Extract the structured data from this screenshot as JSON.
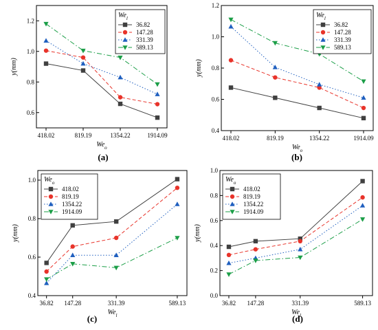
{
  "chart_data": [
    {
      "type": "line",
      "panel_label": "(a)",
      "ylabel": "y(mm)",
      "xlabel": "We_o",
      "categories": [
        "418.02",
        "819.19",
        "1354.22",
        "1914.09"
      ],
      "ylim": [
        0.5,
        1.3
      ],
      "yticks": [
        "0.6",
        "0.8",
        "1.0",
        "1.2"
      ],
      "legend_title": "We_l",
      "legend_position": "top-right",
      "series": [
        {
          "name": "36.82",
          "values": [
            0.92,
            0.875,
            0.657,
            0.567
          ],
          "color": "#404040",
          "marker": "square",
          "dash": ""
        },
        {
          "name": "147.28",
          "values": [
            1.005,
            0.96,
            0.7,
            0.655
          ],
          "color": "#e8332a",
          "marker": "circle",
          "dash": "5,3"
        },
        {
          "name": "331.39",
          "values": [
            1.07,
            0.92,
            0.83,
            0.72
          ],
          "color": "#1f5fbf",
          "marker": "triangle-up",
          "dash": "1.5,2.5"
        },
        {
          "name": "589.13",
          "values": [
            1.18,
            1.005,
            0.96,
            0.785
          ],
          "color": "#1b9e47",
          "marker": "triangle-down",
          "dash": "7,3,1.5,3"
        }
      ]
    },
    {
      "type": "line",
      "panel_label": "(b)",
      "ylabel": "y(mm)",
      "xlabel": "We_o",
      "categories": [
        "418.02",
        "819.19",
        "1354.22",
        "1914.09"
      ],
      "ylim": [
        0.4,
        1.2
      ],
      "yticks": [
        "0.4",
        "0.6",
        "0.8",
        "1.0",
        "1.2"
      ],
      "legend_title": "We_l",
      "legend_position": "top-right",
      "series": [
        {
          "name": "36.82",
          "values": [
            0.675,
            0.61,
            0.545,
            0.48
          ],
          "color": "#404040",
          "marker": "square",
          "dash": ""
        },
        {
          "name": "147.28",
          "values": [
            0.85,
            0.74,
            0.675,
            0.545
          ],
          "color": "#e8332a",
          "marker": "circle",
          "dash": "5,3"
        },
        {
          "name": "331.39",
          "values": [
            1.065,
            0.805,
            0.695,
            0.61
          ],
          "color": "#1f5fbf",
          "marker": "triangle-up",
          "dash": "1.5,2.5"
        },
        {
          "name": "589.13",
          "values": [
            1.11,
            0.96,
            0.89,
            0.715
          ],
          "color": "#1b9e47",
          "marker": "triangle-down",
          "dash": "7,3,1.5,3"
        }
      ]
    },
    {
      "type": "line",
      "panel_label": "(c)",
      "ylabel": "y(mm)",
      "xlabel": "We_l",
      "x": [
        36.82,
        147.28,
        331.39,
        589.13
      ],
      "categories": [
        "36.82",
        "147.28",
        "331.39",
        "589.13"
      ],
      "xlim": [
        0,
        630
      ],
      "ylim": [
        0.4,
        1.05
      ],
      "yticks": [
        "0.4",
        "0.6",
        "0.8",
        "1.0"
      ],
      "legend_title": "We_o",
      "legend_position": "top-left",
      "series": [
        {
          "name": "418.02",
          "values": [
            0.57,
            0.765,
            0.785,
            1.005
          ],
          "color": "#404040",
          "marker": "square",
          "dash": ""
        },
        {
          "name": "819.19",
          "values": [
            0.525,
            0.655,
            0.7,
            0.96
          ],
          "color": "#e8332a",
          "marker": "circle",
          "dash": "5,3"
        },
        {
          "name": "1354.22",
          "values": [
            0.465,
            0.61,
            0.61,
            0.875
          ],
          "color": "#1f5fbf",
          "marker": "triangle-up",
          "dash": "1.5,2.5"
        },
        {
          "name": "1914.09",
          "values": [
            0.485,
            0.565,
            0.545,
            0.7
          ],
          "color": "#1b9e47",
          "marker": "triangle-down",
          "dash": "7,3,1.5,3"
        }
      ]
    },
    {
      "type": "line",
      "panel_label": "(d)",
      "ylabel": "y(mm)",
      "xlabel": "We_l",
      "x": [
        36.82,
        147.28,
        331.39,
        589.13
      ],
      "categories": [
        "36.82",
        "147.28",
        "331.39",
        "589.13"
      ],
      "xlim": [
        0,
        630
      ],
      "ylim": [
        0.0,
        1.0
      ],
      "yticks": [
        "0.0",
        "0.2",
        "0.4",
        "0.6",
        "0.8",
        "1.0"
      ],
      "legend_title": "We_o",
      "legend_position": "top-left",
      "series": [
        {
          "name": "418.02",
          "values": [
            0.39,
            0.435,
            0.455,
            0.915
          ],
          "color": "#404040",
          "marker": "square",
          "dash": ""
        },
        {
          "name": "819.19",
          "values": [
            0.325,
            0.37,
            0.435,
            0.785
          ],
          "color": "#e8332a",
          "marker": "circle",
          "dash": "5,3"
        },
        {
          "name": "1354.22",
          "values": [
            0.26,
            0.3,
            0.37,
            0.72
          ],
          "color": "#1f5fbf",
          "marker": "triangle-up",
          "dash": "1.5,2.5"
        },
        {
          "name": "1914.09",
          "values": [
            0.17,
            0.28,
            0.305,
            0.61
          ],
          "color": "#1b9e47",
          "marker": "triangle-down",
          "dash": "7,3,1.5,3"
        }
      ]
    }
  ]
}
